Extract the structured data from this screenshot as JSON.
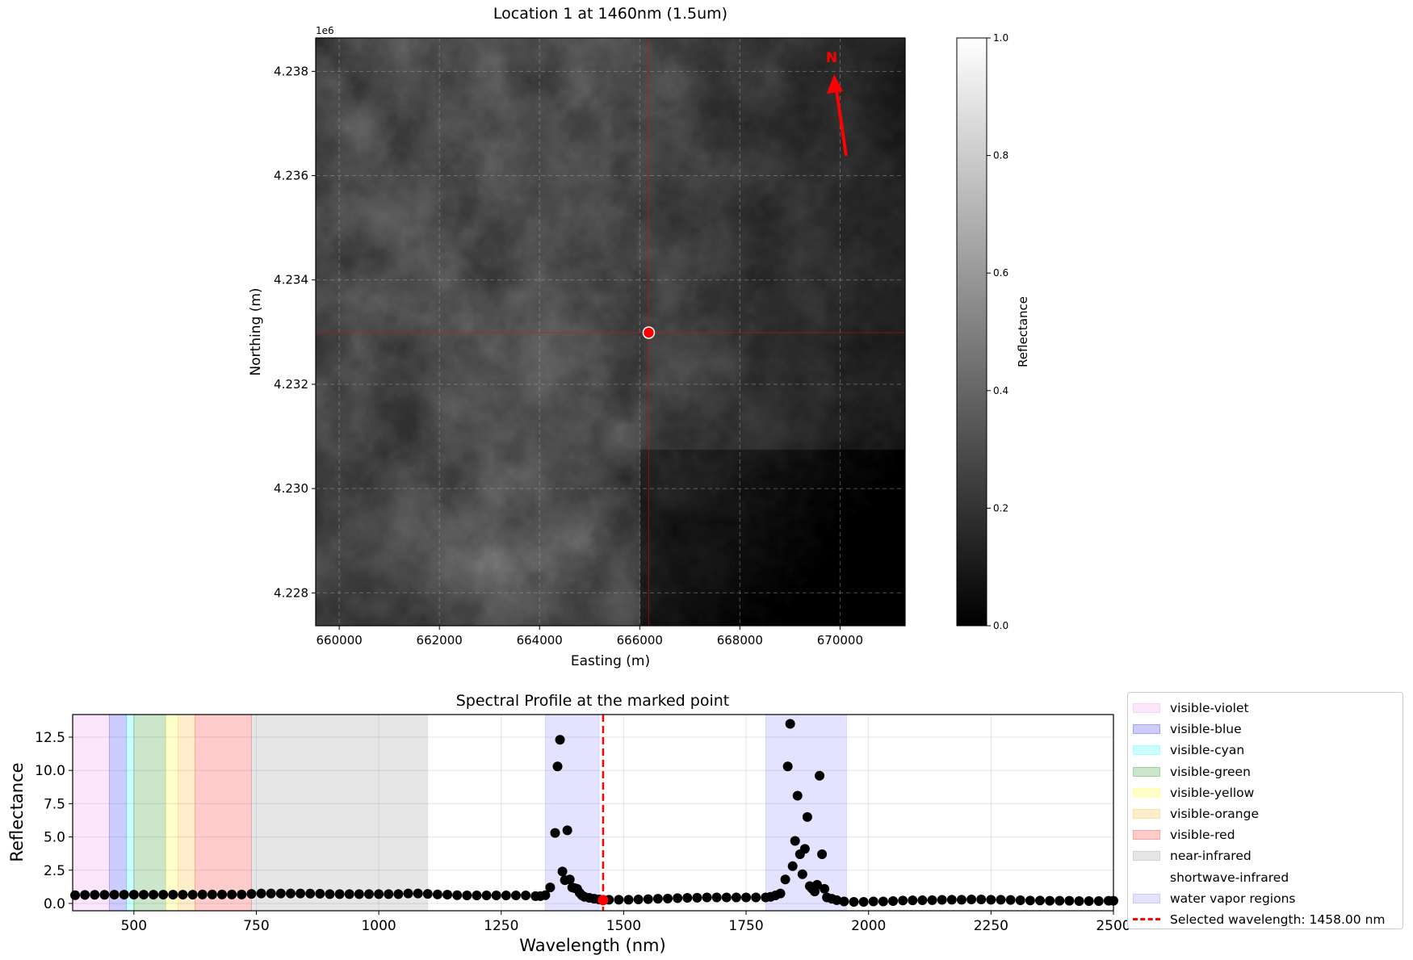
{
  "map": {
    "title": "Location 1 at 1460nm (1.5um)",
    "xlabel": "Easting (m)",
    "ylabel": "Northing (m)",
    "y_offset_text": "1e6",
    "xlim": [
      659530,
      671300
    ],
    "ylim": [
      4227370,
      4238640
    ],
    "xticks": [
      660000,
      662000,
      664000,
      666000,
      668000,
      670000
    ],
    "xtick_labels": [
      "660000",
      "662000",
      "664000",
      "666000",
      "668000",
      "670000"
    ],
    "yticks": [
      4228000,
      4230000,
      4232000,
      4234000,
      4236000,
      4238000
    ],
    "ytick_labels": [
      "4.228",
      "4.230",
      "4.232",
      "4.234",
      "4.236",
      "4.238"
    ],
    "grid": true,
    "colormap": "gray",
    "marked_point": {
      "easting": 666180,
      "northing": 4232990,
      "color": "#ff0000"
    },
    "north_arrow": {
      "label": "N",
      "color": "#ff0000"
    },
    "colorbar": {
      "label": "Reflectance",
      "range": [
        0.0,
        1.0
      ],
      "ticks": [
        0.0,
        0.2,
        0.4,
        0.6,
        0.8,
        1.0
      ],
      "tick_labels": [
        "0.0",
        "0.2",
        "0.4",
        "0.6",
        "0.8",
        "1.0"
      ]
    }
  },
  "chart_data": {
    "type": "scatter",
    "title": "Spectral Profile at the marked point",
    "xlabel": "Wavelength (nm)",
    "ylabel": "Reflectance",
    "xlim": [
      375,
      2500
    ],
    "ylim": [
      -0.55,
      14.2
    ],
    "xticks": [
      500,
      750,
      1000,
      1250,
      1500,
      1750,
      2000,
      2250,
      2500
    ],
    "xtick_labels": [
      "500",
      "750",
      "1000",
      "1250",
      "1500",
      "1750",
      "2000",
      "2250",
      "2500"
    ],
    "yticks": [
      0.0,
      2.5,
      5.0,
      7.5,
      10.0,
      12.5
    ],
    "ytick_labels": [
      "0.0",
      "2.5",
      "5.0",
      "7.5",
      "10.0",
      "12.5"
    ],
    "grid": true,
    "legend_placement": "outside-right",
    "regions": [
      {
        "name": "visible-violet",
        "range": [
          375,
          450
        ],
        "color": "#ee82ee",
        "alpha": 0.2
      },
      {
        "name": "visible-blue",
        "range": [
          450,
          485
        ],
        "color": "#0000ff",
        "alpha": 0.2
      },
      {
        "name": "visible-cyan",
        "range": [
          485,
          500
        ],
        "color": "#00ffff",
        "alpha": 0.2
      },
      {
        "name": "visible-green",
        "range": [
          500,
          565
        ],
        "color": "#008000",
        "alpha": 0.2
      },
      {
        "name": "visible-yellow",
        "range": [
          565,
          590
        ],
        "color": "#ffff00",
        "alpha": 0.2
      },
      {
        "name": "visible-orange",
        "range": [
          590,
          625
        ],
        "color": "#ffa500",
        "alpha": 0.2
      },
      {
        "name": "visible-red",
        "range": [
          625,
          740
        ],
        "color": "#ff0000",
        "alpha": 0.2
      },
      {
        "name": "near-infrared",
        "range": [
          740,
          1100
        ],
        "color": "#808080",
        "alpha": 0.2
      },
      {
        "name": "shortwave-infrared",
        "range": [
          1100,
          2500
        ],
        "color": "#ffffff",
        "alpha": 0.2
      },
      {
        "name": "water vapor regions",
        "ranges": [
          [
            1340,
            1450
          ],
          [
            1790,
            1955
          ]
        ],
        "color": "#0000ff",
        "alpha": 0.11
      }
    ],
    "selected_wavelength": {
      "value": 1458,
      "reflectance": 0.25,
      "label": "Selected wavelength: 1458.00 nm",
      "color": "#ff0000"
    },
    "points": [
      [
        380,
        0.62
      ],
      [
        400,
        0.64
      ],
      [
        420,
        0.65
      ],
      [
        440,
        0.65
      ],
      [
        460,
        0.66
      ],
      [
        480,
        0.66
      ],
      [
        500,
        0.66
      ],
      [
        520,
        0.66
      ],
      [
        540,
        0.66
      ],
      [
        560,
        0.66
      ],
      [
        580,
        0.66
      ],
      [
        600,
        0.66
      ],
      [
        620,
        0.66
      ],
      [
        640,
        0.67
      ],
      [
        660,
        0.67
      ],
      [
        680,
        0.67
      ],
      [
        700,
        0.67
      ],
      [
        720,
        0.67
      ],
      [
        740,
        0.72
      ],
      [
        760,
        0.75
      ],
      [
        780,
        0.75
      ],
      [
        800,
        0.75
      ],
      [
        820,
        0.75
      ],
      [
        840,
        0.75
      ],
      [
        860,
        0.74
      ],
      [
        880,
        0.73
      ],
      [
        900,
        0.7
      ],
      [
        920,
        0.7
      ],
      [
        940,
        0.7
      ],
      [
        960,
        0.7
      ],
      [
        980,
        0.7
      ],
      [
        1000,
        0.7
      ],
      [
        1020,
        0.7
      ],
      [
        1040,
        0.7
      ],
      [
        1060,
        0.75
      ],
      [
        1080,
        0.75
      ],
      [
        1100,
        0.72
      ],
      [
        1120,
        0.68
      ],
      [
        1140,
        0.66
      ],
      [
        1160,
        0.62
      ],
      [
        1180,
        0.6
      ],
      [
        1200,
        0.6
      ],
      [
        1220,
        0.6
      ],
      [
        1240,
        0.6
      ],
      [
        1260,
        0.6
      ],
      [
        1280,
        0.6
      ],
      [
        1300,
        0.6
      ],
      [
        1320,
        0.55
      ],
      [
        1330,
        0.55
      ],
      [
        1340,
        0.62
      ],
      [
        1350,
        1.2
      ],
      [
        1360,
        5.3
      ],
      [
        1365,
        10.3
      ],
      [
        1370,
        12.3
      ],
      [
        1375,
        2.4
      ],
      [
        1380,
        1.75
      ],
      [
        1385,
        5.5
      ],
      [
        1390,
        1.8
      ],
      [
        1395,
        1.2
      ],
      [
        1400,
        1.15
      ],
      [
        1405,
        1.1
      ],
      [
        1410,
        0.8
      ],
      [
        1415,
        0.6
      ],
      [
        1420,
        0.5
      ],
      [
        1430,
        0.42
      ],
      [
        1440,
        0.35
      ],
      [
        1450,
        0.3
      ],
      [
        1458,
        0.25
      ],
      [
        1470,
        0.28
      ],
      [
        1490,
        0.28
      ],
      [
        1510,
        0.28
      ],
      [
        1530,
        0.3
      ],
      [
        1550,
        0.32
      ],
      [
        1570,
        0.35
      ],
      [
        1590,
        0.37
      ],
      [
        1610,
        0.4
      ],
      [
        1630,
        0.42
      ],
      [
        1650,
        0.43
      ],
      [
        1670,
        0.45
      ],
      [
        1690,
        0.45
      ],
      [
        1710,
        0.45
      ],
      [
        1730,
        0.45
      ],
      [
        1750,
        0.45
      ],
      [
        1770,
        0.45
      ],
      [
        1790,
        0.45
      ],
      [
        1800,
        0.5
      ],
      [
        1810,
        0.6
      ],
      [
        1820,
        0.75
      ],
      [
        1830,
        1.8
      ],
      [
        1835,
        10.3
      ],
      [
        1840,
        13.5
      ],
      [
        1845,
        2.8
      ],
      [
        1850,
        4.7
      ],
      [
        1855,
        8.1
      ],
      [
        1860,
        3.7
      ],
      [
        1865,
        2.2
      ],
      [
        1870,
        4.1
      ],
      [
        1875,
        6.5
      ],
      [
        1880,
        1.3
      ],
      [
        1885,
        1.1
      ],
      [
        1890,
        0.9
      ],
      [
        1895,
        1.4
      ],
      [
        1900,
        9.6
      ],
      [
        1905,
        3.7
      ],
      [
        1910,
        1.1
      ],
      [
        1915,
        0.45
      ],
      [
        1925,
        0.35
      ],
      [
        1935,
        0.25
      ],
      [
        1950,
        0.15
      ],
      [
        1970,
        0.12
      ],
      [
        1990,
        0.12
      ],
      [
        2010,
        0.15
      ],
      [
        2030,
        0.15
      ],
      [
        2050,
        0.18
      ],
      [
        2070,
        0.22
      ],
      [
        2090,
        0.23
      ],
      [
        2110,
        0.24
      ],
      [
        2130,
        0.25
      ],
      [
        2150,
        0.27
      ],
      [
        2170,
        0.28
      ],
      [
        2190,
        0.28
      ],
      [
        2210,
        0.3
      ],
      [
        2230,
        0.3
      ],
      [
        2250,
        0.28
      ],
      [
        2270,
        0.28
      ],
      [
        2290,
        0.26
      ],
      [
        2310,
        0.24
      ],
      [
        2330,
        0.22
      ],
      [
        2350,
        0.22
      ],
      [
        2370,
        0.2
      ],
      [
        2390,
        0.2
      ],
      [
        2410,
        0.2
      ],
      [
        2430,
        0.18
      ],
      [
        2450,
        0.18
      ],
      [
        2470,
        0.18
      ],
      [
        2490,
        0.2
      ],
      [
        2500,
        0.2
      ]
    ]
  }
}
